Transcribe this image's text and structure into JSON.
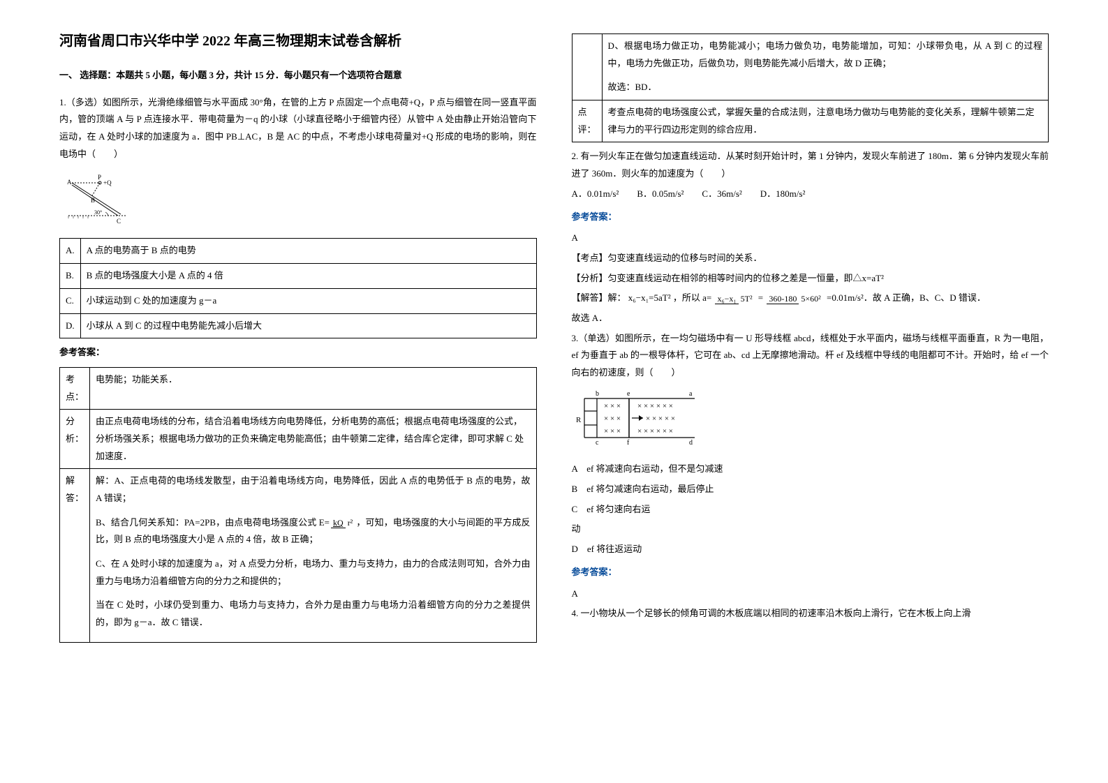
{
  "title": "河南省周口市兴华中学 2022 年高三物理期末试卷含解析",
  "section1": "一、 选择题：本题共 5 小题，每小题 3 分，共计 15 分．每小题只有一个选项符合题意",
  "q1": {
    "stem": "1.（多选）如图所示，光滑绝缘细管与水平面成 30°角，在管的上方 P 点固定一个点电荷+Q，P 点与细管在同一竖直平面内，管的顶端 A 与 P 点连接水平．带电荷量为－q 的小球（小球直径略小于细管内径）从管中 A 处由静止开始沿管向下运动，在 A 处时小球的加速度为 a．图中 PB⊥AC，B 是 AC 的中点，不考虑小球电荷量对+Q 形成的电场的影响，则在电场中（　　）",
    "diagram": {
      "labelP": "P",
      "labelQ": "+Q",
      "labelA": "A",
      "labelB": "B",
      "labelC": "C",
      "angle": "30°"
    },
    "options": [
      {
        "k": "A.",
        "v": "A 点的电势高于 B 点的电势"
      },
      {
        "k": "B.",
        "v": "B 点的电场强度大小是 A 点的 4 倍"
      },
      {
        "k": "C.",
        "v": "小球运动到 C 处的加速度为 g－a"
      },
      {
        "k": "D.",
        "v": "小球从 A 到 C 的过程中电势能先减小后增大"
      }
    ],
    "ansHead": "参考答案：",
    "solTable": [
      {
        "k": "考点：",
        "v": "电势能；功能关系．"
      },
      {
        "k": "分析：",
        "v": "由正点电荷电场线的分布，结合沿着电场线方向电势降低，分析电势的高低；根据点电荷电场强度的公式，分析场强关系；根据电场力做功的正负来确定电势能高低；由牛顿第二定律，结合库仑定律，即可求解 C 处加速度．"
      },
      {
        "k": "解答：",
        "v": "解：A、正点电荷的电场线发散型，由于沿着电场线方向，电势降低，因此 A 点的电势低于 B 点的电势，故 A 错误；|||B、结合几何关系知：PA=2PB，由点电荷电场强度公式 E=__FRAC_kQ_r2__，可知，电场强度的大小与间距的平方成反比，则 B 点的电场强度大小是 A 点的 4 倍，故 B 正确；|||C、在 A 处时小球的加速度为 a，对 A 点受力分析，电场力、重力与支持力，由力的合成法则可知，合外力由重力与电场力沿着细管方向的分力之和提供的；|||当在 C 处时，小球仍受到重力、电场力与支持力，合外力是由重力与电场力沿着细管方向的分力之差提供的，即为 g－a．故 C 错误．"
      }
    ]
  },
  "rightTop": {
    "solCont": [
      "D、根据电场力做正功，电势能减小；电场力做负功，电势能增加，可知：小球带负电，从 A 到 C 的过程中，电场力先做正功，后做负功，则电势能先减小后增大，故 D 正确；",
      "故选：BD．"
    ],
    "comment": {
      "k": "点评：",
      "v": "考查点电荷的电场强度公式，掌握矢量的合成法则，注意电场力做功与电势能的变化关系，理解牛顿第二定律与力的平行四边形定则的综合应用．"
    }
  },
  "q2": {
    "stem": "2. 有一列火车正在做匀加速直线运动．从某时刻开始计时，第 1 分钟内，发现火车前进了 180m．第 6 分钟内发现火车前进了 360m．则火车的加速度为（　　）",
    "choices": "A．0.01m/s²　　B．0.05m/s²　　C．36m/s²　　D．180m/s²",
    "ansHead": "参考答案：",
    "ans": "A",
    "point": "【考点】匀变速直线运动的位移与时间的关系．",
    "analysis": "【分析】匀变速直线运动在相邻的相等时间内的位移之差是一恒量，即△x=aT²",
    "solve_pre": "【解答】解：",
    "solve_eq": "x₆−x₁=5aT²",
    "solve_mid": "，所以 a=",
    "solve_post": "=0.01m/s²．故 A 正确，B、C、D 错误．",
    "tail": "故选 A．",
    "frac1_num": "x₆−x₁",
    "frac1_den": "5T²",
    "frac2_num": "360-180",
    "frac2_den": "5×60²"
  },
  "q3": {
    "stem": "3.（单选）如图所示，在一均匀磁场中有一 U 形导线框 abcd，线框处于水平面内，磁场与线框平面垂直，R 为一电阻，ef 为垂直于 ab 的一根导体杆，它可在 ab、cd 上无摩擦地滑动。杆 ef 及线框中导线的电阻都可不计。开始时，给 ef 一个向右的初速度，则（　　）",
    "diagram": {
      "b": "b",
      "e": "e",
      "a": "a",
      "c": "c",
      "f": "f",
      "d": "d",
      "R": "R",
      "cross": "×",
      "arrow": "→"
    },
    "options": [
      {
        "k": "A",
        "v": "ef 将减速向右运动，但不是匀减速"
      },
      {
        "k": "B",
        "v": "ef 将匀减速向右运动，最后停止"
      },
      {
        "k": "C",
        "v": "ef 将匀速向右运"
      },
      {
        "k": "Cx",
        "v": "动"
      },
      {
        "k": "D",
        "v": "ef 将往返运动"
      }
    ],
    "ansHead": "参考答案：",
    "ans": "A"
  },
  "q4": "4. 一小物块从一个足够长的倾角可调的木板底端以相同的初速率沿木板向上滑行，它在木板上向上滑"
}
